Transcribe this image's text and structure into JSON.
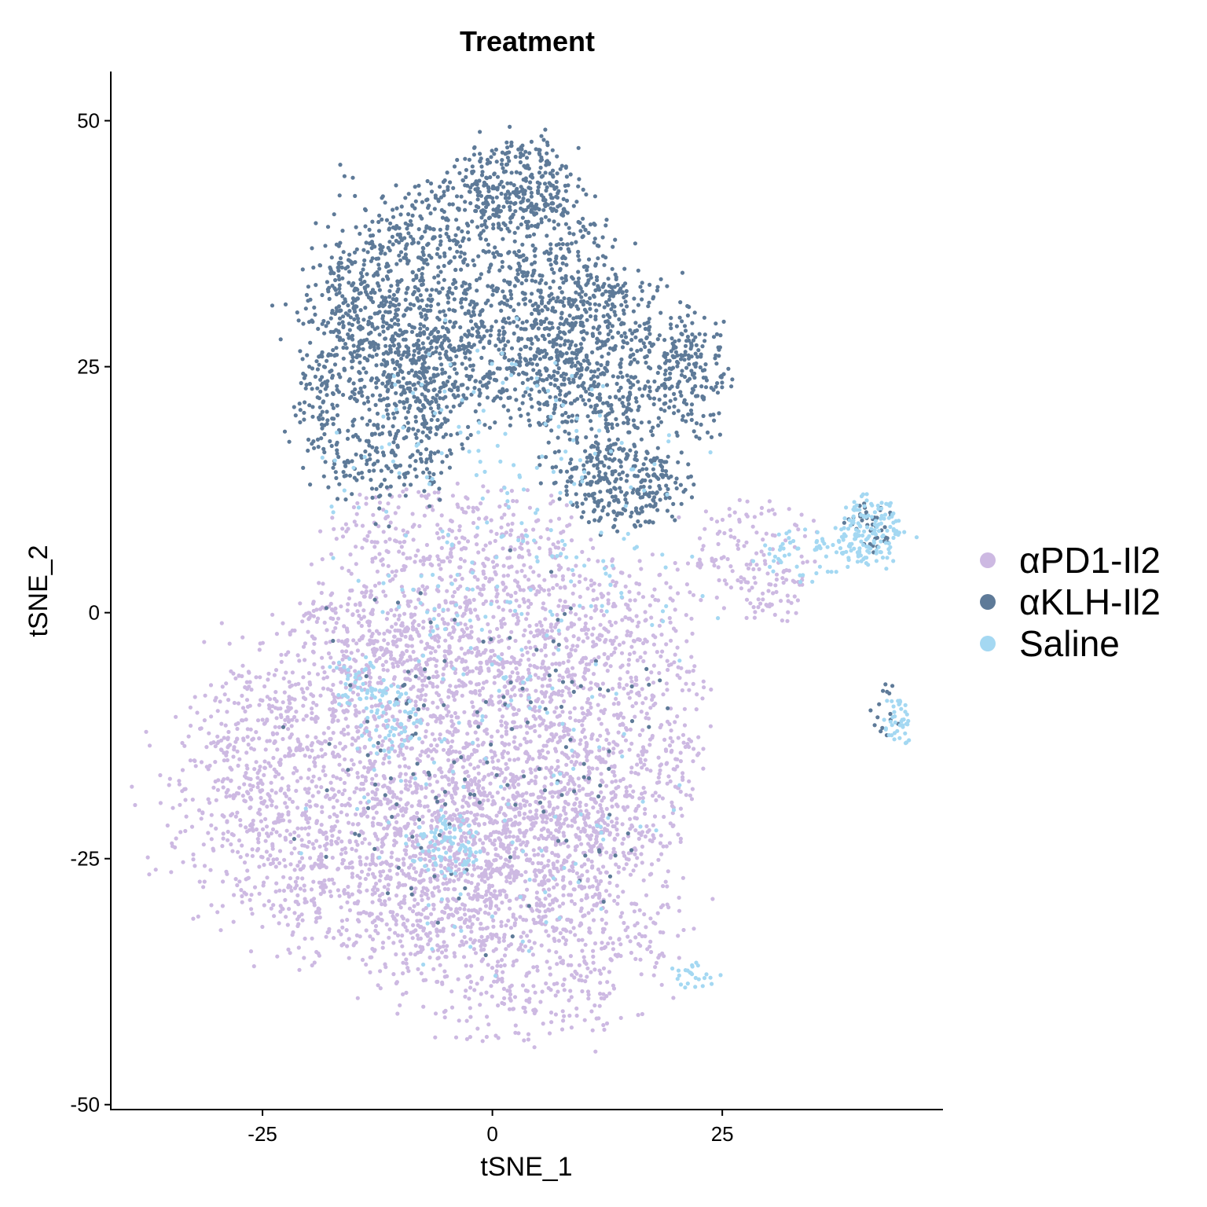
{
  "chart_data": {
    "type": "scatter",
    "title": "Treatment",
    "xlabel": "tSNE_1",
    "ylabel": "tSNE_2",
    "xlim": [
      -41.5,
      49
    ],
    "ylim": [
      -50.5,
      55
    ],
    "xticks": [
      -25,
      0,
      25
    ],
    "yticks": [
      -50,
      -25,
      0,
      25,
      50
    ],
    "xtick_labels": [
      "-25",
      "0",
      "25"
    ],
    "ytick_labels": [
      "-50",
      "-25",
      "0",
      "25",
      "50"
    ],
    "grid": false,
    "legend": {
      "position": "right"
    },
    "series": [
      {
        "name": "αPD1-Il2",
        "color": "#CDB9E2",
        "regions": [
          {
            "cx": -10,
            "cy": -18,
            "rx": 25,
            "ry": 19,
            "n": 2800
          },
          {
            "cx": 4,
            "cy": -30,
            "rx": 17,
            "ry": 14,
            "n": 900
          },
          {
            "cx": -1,
            "cy": 0,
            "rx": 22,
            "ry": 8,
            "n": 700
          },
          {
            "cx": 14,
            "cy": -12,
            "rx": 10,
            "ry": 14,
            "n": 500
          },
          {
            "cx": -5,
            "cy": 9,
            "rx": 14,
            "ry": 5,
            "n": 200
          },
          {
            "cx": 28,
            "cy": 6,
            "rx": 8,
            "ry": 6,
            "n": 120
          },
          {
            "cx": 30,
            "cy": 2,
            "rx": 4,
            "ry": 4,
            "n": 40
          }
        ]
      },
      {
        "name": "αKLH-Il2",
        "color": "#5E7A98",
        "regions": [
          {
            "cx": -2,
            "cy": 32,
            "rx": 19,
            "ry": 13,
            "n": 1500
          },
          {
            "cx": -12,
            "cy": 22,
            "rx": 10,
            "ry": 12,
            "n": 600
          },
          {
            "cx": 12,
            "cy": 25,
            "rx": 10,
            "ry": 10,
            "n": 500
          },
          {
            "cx": 14,
            "cy": 13,
            "rx": 8,
            "ry": 5,
            "n": 300
          },
          {
            "cx": 22,
            "cy": 24,
            "rx": 4,
            "ry": 7,
            "n": 150
          },
          {
            "cx": 3,
            "cy": 44,
            "rx": 7,
            "ry": 5,
            "n": 250
          },
          {
            "cx": 41,
            "cy": 9,
            "rx": 3,
            "ry": 3,
            "n": 40
          },
          {
            "cx": 0,
            "cy": -15,
            "rx": 22,
            "ry": 20,
            "n": 150
          },
          {
            "cx": 43,
            "cy": -10,
            "rx": 2,
            "ry": 3,
            "n": 15
          }
        ]
      },
      {
        "name": "Saline",
        "color": "#A4D8F2",
        "regions": [
          {
            "cx": 41,
            "cy": 8,
            "rx": 4,
            "ry": 4,
            "n": 150
          },
          {
            "cx": 35,
            "cy": 6,
            "rx": 6,
            "ry": 3,
            "n": 60
          },
          {
            "cx": 44,
            "cy": -11,
            "rx": 1.5,
            "ry": 3,
            "n": 40
          },
          {
            "cx": -5,
            "cy": -24,
            "rx": 4,
            "ry": 3,
            "n": 80
          },
          {
            "cx": -11,
            "cy": -11,
            "rx": 4,
            "ry": 4,
            "n": 70
          },
          {
            "cx": -15,
            "cy": -7,
            "rx": 3,
            "ry": 3,
            "n": 40
          },
          {
            "cx": 22,
            "cy": -37,
            "rx": 3,
            "ry": 1.5,
            "n": 25
          },
          {
            "cx": 0,
            "cy": 15,
            "rx": 20,
            "ry": 15,
            "n": 150
          },
          {
            "cx": 5,
            "cy": 0,
            "rx": 20,
            "ry": 10,
            "n": 80
          },
          {
            "cx": 0,
            "cy": -20,
            "rx": 20,
            "ry": 15,
            "n": 100
          }
        ]
      }
    ]
  }
}
